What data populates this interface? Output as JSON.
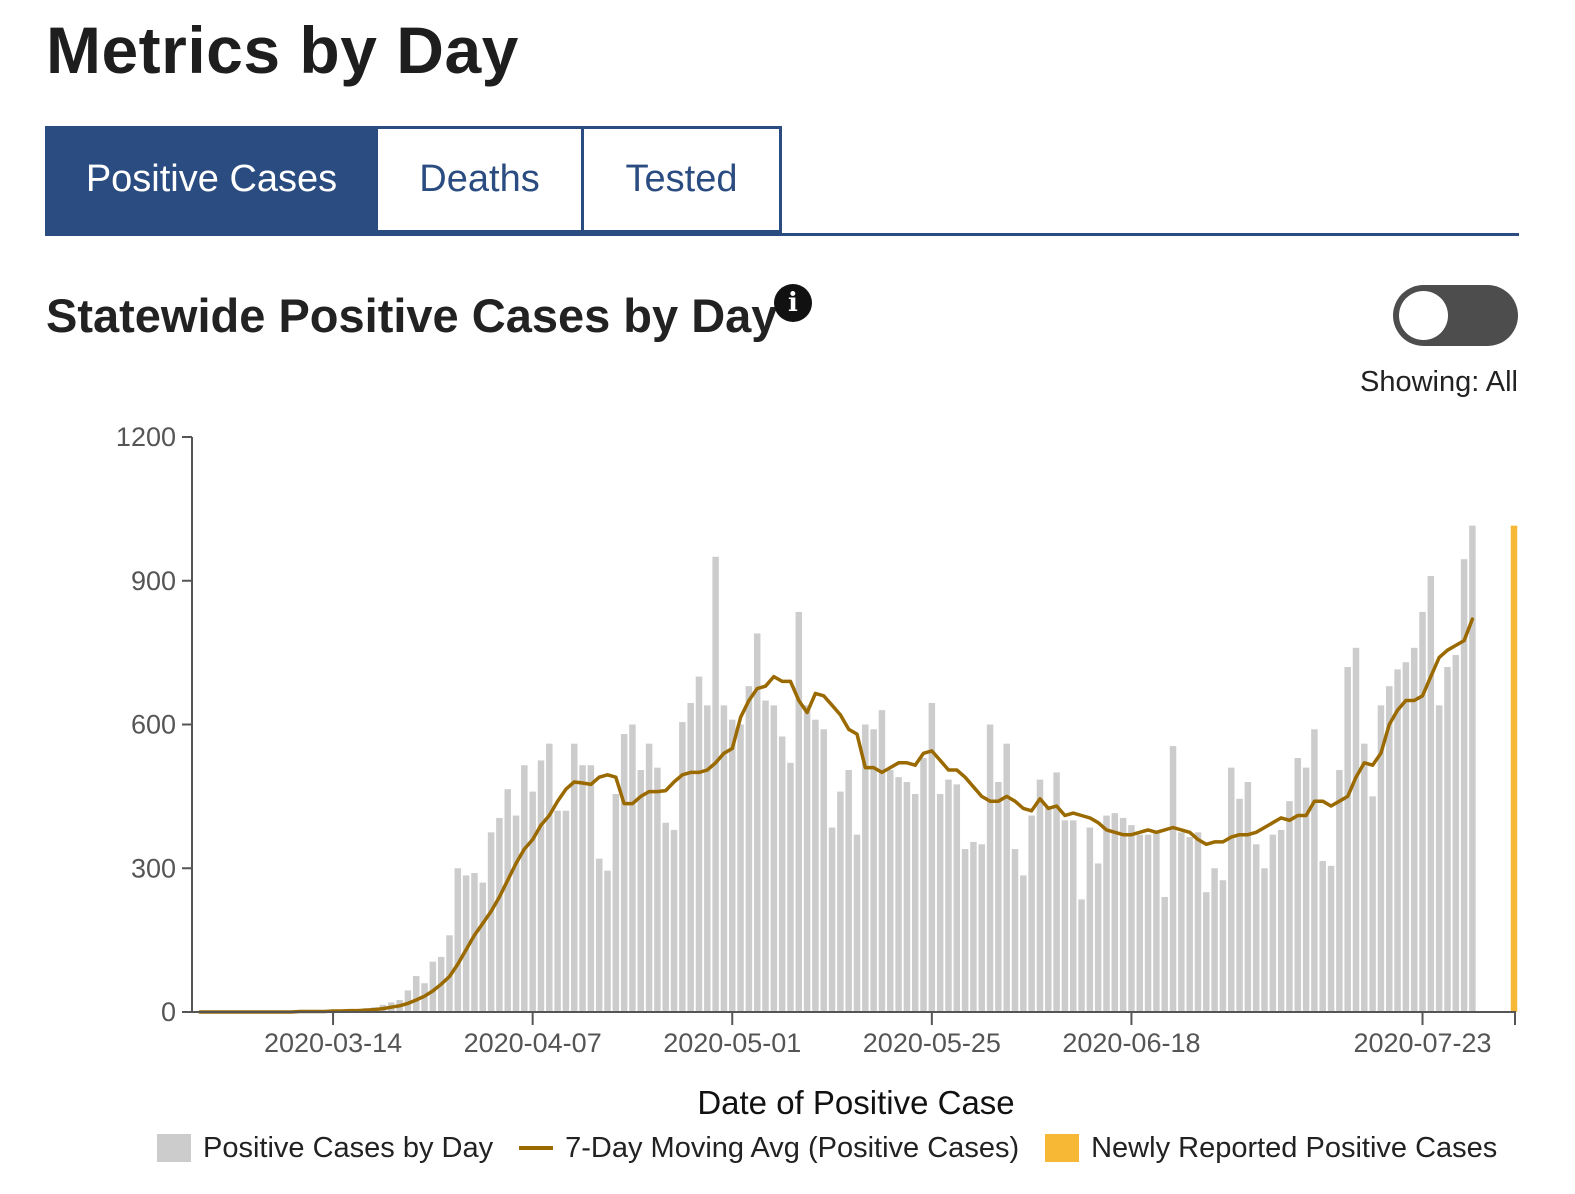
{
  "page": {
    "title": "Metrics by Day"
  },
  "tabs": [
    {
      "label": "Positive Cases",
      "active": true
    },
    {
      "label": "Deaths",
      "active": false
    },
    {
      "label": "Tested",
      "active": false
    }
  ],
  "chart_header": {
    "title": "Statewide Positive Cases by Day",
    "info_icon": "info-icon",
    "info_glyph": "i",
    "toggle_on": false,
    "showing_label": "Showing: All"
  },
  "colors": {
    "accent": "#2b4c80",
    "bars": "#cccccc",
    "moving_avg": "#9a6a00",
    "newly_reported": "#f7b935",
    "toggle": "#4d4d4d"
  },
  "legend": [
    {
      "label": "Positive Cases by Day",
      "kind": "box",
      "color": "#cccccc"
    },
    {
      "label": "7-Day Moving Avg (Positive Cases)",
      "kind": "line",
      "color": "#9a6a00"
    },
    {
      "label": "Newly Reported Positive Cases",
      "kind": "box",
      "color": "#f7b935"
    }
  ],
  "chart_data": {
    "type": "bar",
    "title": "Statewide Positive Cases by Day",
    "xlabel": "Date of Positive Case",
    "ylabel": "",
    "x_start": "2020-02-27",
    "x_end": "2020-08-03",
    "ylim": [
      0,
      1200
    ],
    "yticks": [
      0,
      300,
      600,
      900,
      1200
    ],
    "xticks": [
      "2020-03-14",
      "2020-04-07",
      "2020-05-01",
      "2020-05-25",
      "2020-06-18",
      "2020-07-23"
    ],
    "grid": false,
    "legend_position": "bottom",
    "series": [
      {
        "name": "Positive Cases by Day",
        "kind": "bar",
        "start_date": "2020-02-27",
        "values": [
          0,
          0,
          0,
          0,
          0,
          0,
          0,
          0,
          0,
          0,
          0,
          0,
          1,
          1,
          2,
          2,
          3,
          4,
          5,
          6,
          8,
          10,
          15,
          20,
          25,
          45,
          75,
          60,
          105,
          115,
          160,
          300,
          285,
          290,
          270,
          375,
          405,
          465,
          410,
          515,
          460,
          525,
          560,
          420,
          420,
          560,
          515,
          515,
          320,
          295,
          455,
          580,
          600,
          505,
          560,
          510,
          395,
          380,
          605,
          645,
          700,
          640,
          950,
          640,
          610,
          600,
          680,
          790,
          650,
          640,
          575,
          520,
          835,
          640,
          610,
          590,
          385,
          460,
          505,
          370,
          600,
          590,
          630,
          505,
          490,
          480,
          455,
          530,
          645,
          455,
          485,
          475,
          340,
          355,
          350,
          600,
          480,
          560,
          340,
          285,
          410,
          485,
          430,
          500,
          400,
          400,
          235,
          385,
          310,
          410,
          415,
          405,
          390,
          370,
          370,
          375,
          240,
          555,
          375,
          365,
          375,
          250,
          300,
          275,
          510,
          445,
          480,
          350,
          300,
          370,
          380,
          440,
          530,
          510,
          590,
          315,
          305,
          505,
          720,
          760,
          560,
          450,
          640,
          680,
          715,
          730,
          760,
          835,
          910,
          640,
          720,
          745,
          945,
          1015
        ]
      },
      {
        "name": "7-Day Moving Avg (Positive Cases)",
        "kind": "line",
        "values": [
          0,
          0,
          0,
          0,
          0,
          0,
          0,
          0,
          0,
          0,
          0,
          0,
          1,
          1,
          1,
          1,
          2,
          2,
          3,
          3,
          4,
          5,
          7,
          10,
          13,
          18,
          25,
          33,
          44,
          58,
          74,
          100,
          130,
          160,
          185,
          210,
          240,
          275,
          310,
          340,
          360,
          390,
          410,
          440,
          465,
          480,
          478,
          475,
          490,
          495,
          490,
          435,
          435,
          450,
          460,
          460,
          462,
          480,
          495,
          500,
          500,
          505,
          520,
          540,
          550,
          615,
          650,
          675,
          680,
          700,
          690,
          690,
          650,
          625,
          665,
          660,
          640,
          620,
          590,
          580,
          510,
          510,
          500,
          510,
          520,
          520,
          515,
          540,
          545,
          525,
          505,
          505,
          490,
          470,
          450,
          440,
          440,
          450,
          440,
          425,
          420,
          445,
          425,
          430,
          410,
          415,
          410,
          405,
          395,
          380,
          375,
          370,
          370,
          375,
          380,
          375,
          380,
          385,
          380,
          375,
          360,
          350,
          355,
          355,
          365,
          370,
          370,
          375,
          385,
          395,
          405,
          400,
          410,
          410,
          440,
          440,
          430,
          440,
          450,
          490,
          520,
          515,
          540,
          600,
          630,
          650,
          650,
          660,
          700,
          740,
          755,
          765,
          775,
          820
        ]
      },
      {
        "name": "Newly Reported Positive Cases",
        "kind": "bar",
        "date": "2020-08-03",
        "value": 1015
      }
    ]
  }
}
